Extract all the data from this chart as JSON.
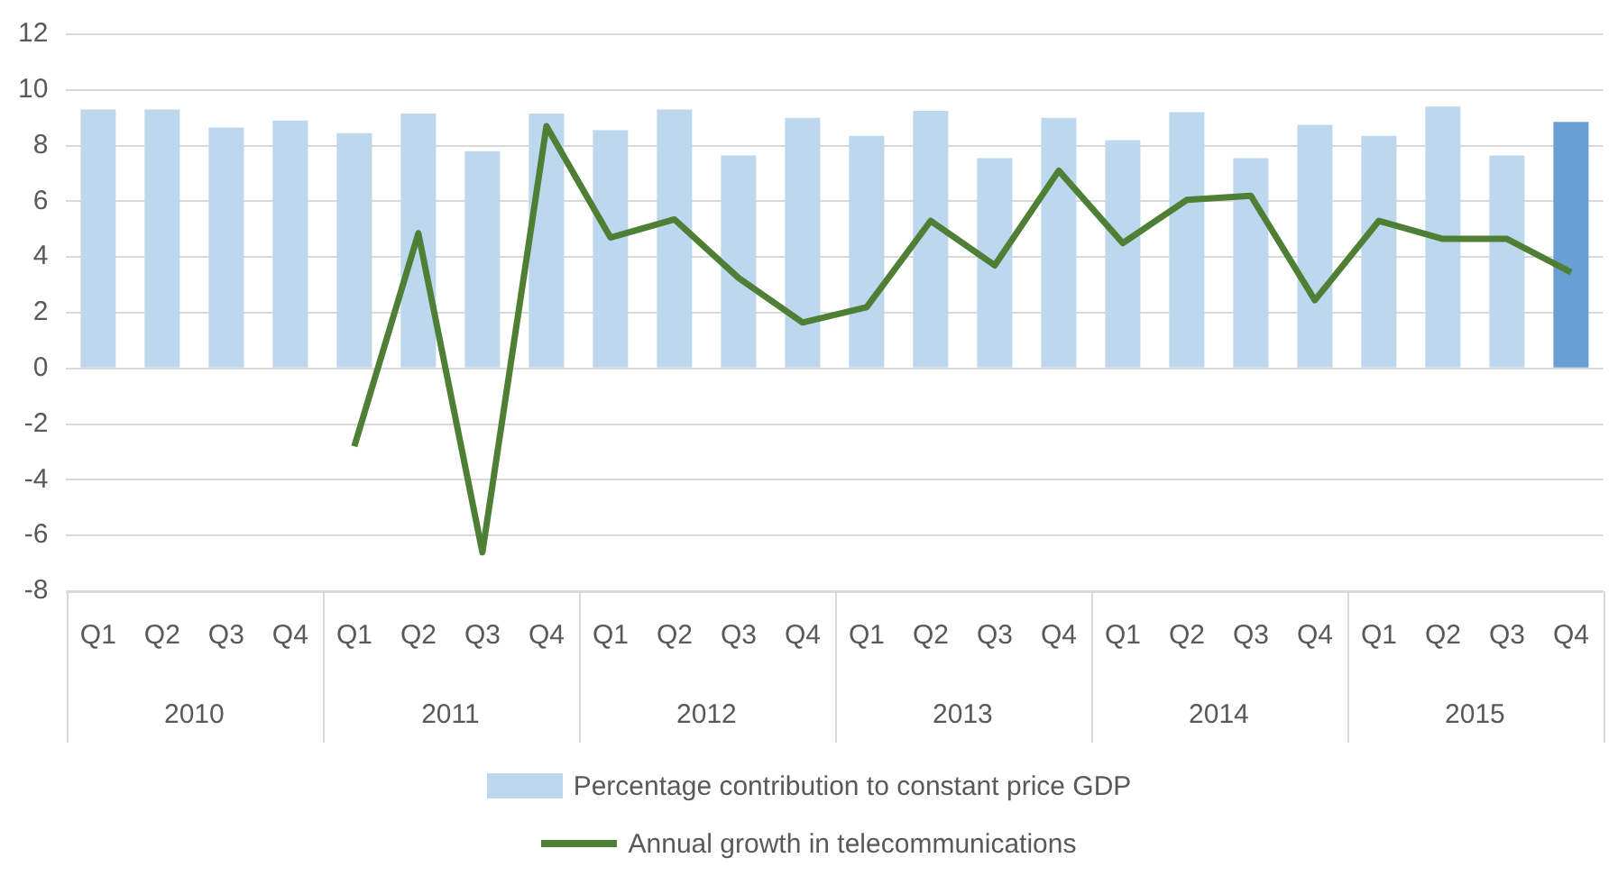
{
  "chart_data": {
    "type": "bar",
    "categories": [
      "Q1",
      "Q2",
      "Q3",
      "Q4",
      "Q1",
      "Q2",
      "Q3",
      "Q4",
      "Q1",
      "Q2",
      "Q3",
      "Q4",
      "Q1",
      "Q2",
      "Q3",
      "Q4",
      "Q1",
      "Q2",
      "Q3",
      "Q4",
      "Q1",
      "Q2",
      "Q3",
      "Q4"
    ],
    "annotations": [
      "2010",
      "2011",
      "2012",
      "2013",
      "2014",
      "2015"
    ],
    "series": [
      {
        "name": "Percentage contribution to constant price GDP",
        "color": "#bdd7ee",
        "colors": [
          "#bdd7ee",
          "#bdd7ee",
          "#bdd7ee",
          "#bdd7ee",
          "#bdd7ee",
          "#bdd7ee",
          "#bdd7ee",
          "#bdd7ee",
          "#bdd7ee",
          "#bdd7ee",
          "#bdd7ee",
          "#bdd7ee",
          "#bdd7ee",
          "#bdd7ee",
          "#bdd7ee",
          "#bdd7ee",
          "#bdd7ee",
          "#bdd7ee",
          "#bdd7ee",
          "#bdd7ee",
          "#bdd7ee",
          "#bdd7ee",
          "#bdd7ee",
          "#6a9fd4"
        ],
        "values": [
          9.3,
          9.3,
          8.65,
          8.9,
          8.45,
          9.15,
          7.8,
          9.15,
          8.55,
          9.3,
          7.65,
          9.0,
          8.35,
          9.25,
          7.55,
          9.0,
          8.2,
          9.2,
          7.55,
          8.75,
          8.35,
          9.4,
          7.65,
          8.85
        ]
      },
      {
        "name": "Annual growth in telecommunications",
        "type": "line",
        "color": "#4e7f34",
        "values": [
          null,
          null,
          null,
          null,
          -2.8,
          4.85,
          -6.6,
          8.7,
          4.7,
          5.35,
          3.25,
          1.65,
          2.2,
          5.3,
          3.7,
          7.1,
          4.5,
          6.05,
          6.2,
          2.45,
          5.3,
          4.65,
          4.65,
          3.45
        ]
      }
    ],
    "ylim": [
      -8,
      12
    ],
    "yticks": [
      -8,
      -6,
      -4,
      -2,
      0,
      2,
      4,
      6,
      8,
      10,
      12
    ],
    "grid": "y",
    "legend": "bottom",
    "marker": "none"
  }
}
